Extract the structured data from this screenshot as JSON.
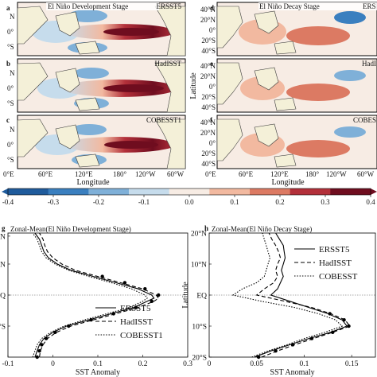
{
  "maps": {
    "panels": [
      {
        "letter": "a",
        "title": "El Niño Development Stage",
        "dataset": "ERSST5",
        "stage": "dev"
      },
      {
        "letter": "b",
        "title": "",
        "dataset": "HadISST",
        "stage": "dev"
      },
      {
        "letter": "c",
        "title": "",
        "dataset": "COBESST1",
        "stage": "dev"
      },
      {
        "letter": "d",
        "title": "El Niño Decay Stage",
        "dataset": "ERS",
        "stage": "decay"
      },
      {
        "letter": "e",
        "title": "",
        "dataset": "HadI",
        "stage": "decay"
      },
      {
        "letter": "f",
        "title": "",
        "dataset": "COBES",
        "stage": "decay"
      }
    ],
    "left_lat_ticks": [
      "N",
      "0°",
      "°S"
    ],
    "right_lat_ticks": [
      "40°N",
      "20°N",
      "0°",
      "20°S",
      "40°S"
    ],
    "ylabel_right": "Latitude",
    "lon_ticks": [
      "0°E",
      "60°E",
      "120°E",
      "180°",
      "120°W",
      "60°W"
    ],
    "xlabel": "Longitude"
  },
  "colorbar": {
    "ticks": [
      -0.4,
      -0.3,
      -0.2,
      -0.1,
      0.0,
      0.1,
      0.2,
      0.3,
      0.4
    ],
    "labels": [
      "-0.4",
      "-0.3",
      "-0.2",
      "-0.1",
      "0.0",
      "0.1",
      "0.2",
      "0.3",
      "0.4"
    ],
    "colors": [
      "#1f5b9c",
      "#3a7fbf",
      "#7fb0d8",
      "#c6dcec",
      "#f7ece4",
      "#f2b9a0",
      "#dc7a63",
      "#b3303a",
      "#6f0d1f"
    ]
  },
  "chart_data": [
    {
      "type": "line",
      "panel": "g",
      "title": "Zonal-Mean(El Niño Development Stage)",
      "xlabel": "SST Anomaly",
      "ylabel": "",
      "xlim": [
        -0.1,
        0.3
      ],
      "ylim": [
        -20,
        20
      ],
      "x_ticks": [
        "-0.1",
        "0",
        "0.1",
        "0.2",
        "0.3"
      ],
      "y_ticks": [
        "°S",
        "EQ",
        "°N",
        "°N"
      ],
      "legend": [
        "ERSST5",
        "HadISST",
        "COBESST1"
      ],
      "legend_position": "lower-right",
      "series": [
        {
          "name": "ERSST5",
          "style": "solid",
          "lat": [
            -20,
            -18,
            -16,
            -14,
            -12,
            -10,
            -8,
            -6,
            -4,
            -2,
            -1,
            0,
            1,
            2,
            4,
            6,
            8,
            10,
            12,
            14,
            16,
            18,
            20
          ],
          "x": [
            -0.04,
            -0.035,
            -0.03,
            -0.02,
            0.0,
            0.03,
            0.08,
            0.13,
            0.18,
            0.21,
            0.225,
            0.22,
            0.205,
            0.19,
            0.14,
            0.09,
            0.04,
            0.01,
            -0.01,
            -0.02,
            -0.025,
            -0.03,
            -0.04
          ]
        },
        {
          "name": "HadISST",
          "style": "dashed",
          "lat": [
            -20,
            -18,
            -16,
            -14,
            -12,
            -10,
            -8,
            -6,
            -4,
            -2,
            -1,
            0,
            1,
            2,
            4,
            6,
            8,
            10,
            12,
            14,
            16,
            18,
            20
          ],
          "x": [
            -0.03,
            -0.028,
            -0.022,
            -0.012,
            0.008,
            0.04,
            0.09,
            0.14,
            0.19,
            0.225,
            0.235,
            0.23,
            0.215,
            0.2,
            0.15,
            0.1,
            0.05,
            0.02,
            0.0,
            -0.012,
            -0.018,
            -0.022,
            -0.03
          ]
        },
        {
          "name": "COBESST1",
          "style": "dotted",
          "lat": [
            -20,
            -18,
            -16,
            -14,
            -12,
            -10,
            -8,
            -6,
            -4,
            -2,
            -1,
            0,
            1,
            2,
            4,
            6,
            8,
            10,
            12,
            14,
            16,
            18,
            20
          ],
          "x": [
            -0.045,
            -0.04,
            -0.035,
            -0.025,
            -0.005,
            0.025,
            0.07,
            0.12,
            0.17,
            0.2,
            0.21,
            0.205,
            0.19,
            0.175,
            0.13,
            0.08,
            0.035,
            0.005,
            -0.015,
            -0.025,
            -0.03,
            -0.035,
            -0.045
          ]
        }
      ],
      "markers": {
        "lat": [
          -20,
          -18,
          -16,
          -14,
          -12,
          -10,
          -8,
          -6,
          -4,
          -2,
          0,
          2,
          4,
          6
        ],
        "x": [
          -0.035,
          -0.03,
          -0.025,
          -0.015,
          0.005,
          0.035,
          0.085,
          0.135,
          0.185,
          0.22,
          0.235,
          0.205,
          0.16,
          0.11
        ]
      }
    },
    {
      "type": "line",
      "panel": "h",
      "title": "Zonal-Mean(El Niño Decay Stage)",
      "xlabel": "SST Anomaly",
      "ylabel": "Latitude",
      "xlim": [
        0,
        0.175
      ],
      "ylim": [
        -20,
        20
      ],
      "x_ticks": [
        "0",
        "0.05",
        "0.1",
        "0.15"
      ],
      "y_ticks": [
        "20°S",
        "10°S",
        "EQ",
        "10°N",
        "20°N"
      ],
      "legend": [
        "ERSST5",
        "HadISST",
        "COBESST"
      ],
      "legend_position": "upper-right",
      "series": [
        {
          "name": "ERSST5",
          "style": "solid",
          "lat": [
            -20,
            -18,
            -16,
            -14,
            -12,
            -10,
            -8,
            -6,
            -4,
            -2,
            0,
            2,
            4,
            6,
            8,
            10,
            12,
            14,
            16,
            18,
            20
          ],
          "x": [
            0.048,
            0.065,
            0.085,
            0.105,
            0.128,
            0.145,
            0.14,
            0.125,
            0.105,
            0.085,
            0.065,
            0.072,
            0.075,
            0.078,
            0.076,
            0.078,
            0.08,
            0.079,
            0.078,
            0.074,
            0.07
          ]
        },
        {
          "name": "HadISST",
          "style": "dashed",
          "lat": [
            -20,
            -18,
            -16,
            -14,
            -12,
            -10,
            -8,
            -6,
            -4,
            -2,
            0,
            2,
            4,
            6,
            8,
            10,
            12,
            14,
            16,
            18,
            20
          ],
          "x": [
            0.055,
            0.072,
            0.09,
            0.11,
            0.13,
            0.148,
            0.143,
            0.128,
            0.108,
            0.08,
            0.05,
            0.058,
            0.068,
            0.072,
            0.07,
            0.072,
            0.075,
            0.073,
            0.07,
            0.066,
            0.063
          ]
        },
        {
          "name": "COBESST",
          "style": "dotted",
          "lat": [
            -20,
            -18,
            -16,
            -14,
            -12,
            -10,
            -8,
            -6,
            -4,
            -2,
            0,
            2,
            4,
            6,
            8,
            10,
            12,
            14,
            16,
            18,
            20
          ],
          "x": [
            0.045,
            0.062,
            0.082,
            0.1,
            0.122,
            0.14,
            0.133,
            0.115,
            0.09,
            0.055,
            0.025,
            0.035,
            0.05,
            0.058,
            0.06,
            0.062,
            0.064,
            0.062,
            0.06,
            0.058,
            0.056
          ]
        }
      ],
      "markers": {
        "lat": [
          -20,
          -18,
          -16,
          -14,
          -12,
          -10,
          -8,
          -6
        ],
        "x": [
          0.052,
          0.07,
          0.088,
          0.108,
          0.13,
          0.147,
          0.142,
          0.127
        ]
      }
    }
  ],
  "colors": {
    "land": "#f4f0d8",
    "coast": "#3c3c3c",
    "frame": "#000000",
    "equator_line": "#555555"
  }
}
